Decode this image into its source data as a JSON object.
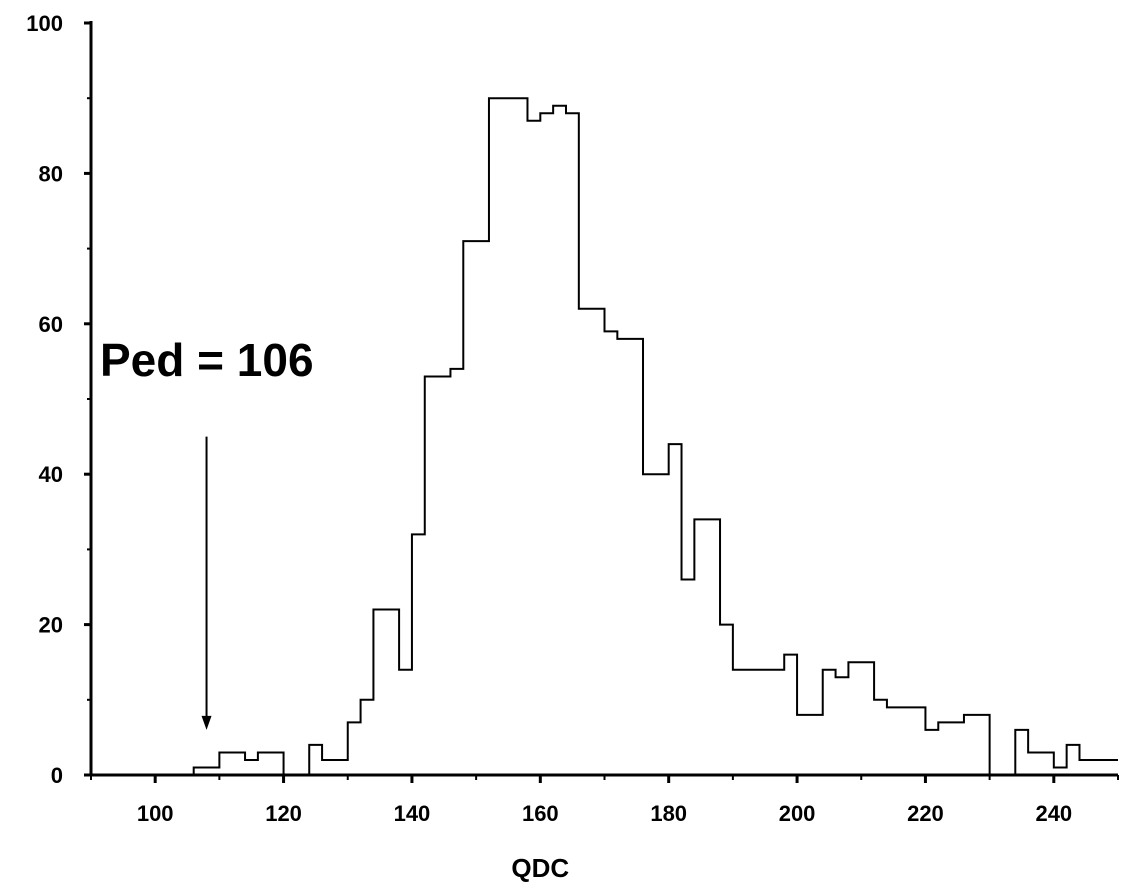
{
  "chart_data": {
    "type": "histogram",
    "title": "",
    "xlabel": "QDC",
    "ylabel": "",
    "xlim": [
      90,
      250
    ],
    "ylim": [
      0,
      100
    ],
    "x_ticks": [
      100,
      120,
      140,
      160,
      180,
      200,
      220,
      240
    ],
    "y_ticks": [
      0,
      20,
      40,
      60,
      80,
      100
    ],
    "bin_width": 2,
    "bin_starts": [
      90,
      92,
      94,
      96,
      98,
      100,
      102,
      104,
      106,
      108,
      110,
      112,
      114,
      116,
      118,
      120,
      122,
      124,
      126,
      128,
      130,
      132,
      134,
      136,
      138,
      140,
      142,
      144,
      146,
      148,
      150,
      152,
      154,
      156,
      158,
      160,
      162,
      164,
      166,
      168,
      170,
      172,
      174,
      176,
      178,
      180,
      182,
      184,
      186,
      188,
      190,
      192,
      194,
      196,
      198,
      200,
      202,
      204,
      206,
      208,
      210,
      212,
      214,
      216,
      218,
      220,
      222,
      224,
      226,
      228,
      230,
      232,
      234,
      236,
      238,
      240,
      242,
      244,
      246,
      248
    ],
    "counts": [
      0,
      0,
      0,
      0,
      0,
      0,
      0,
      0,
      1,
      1,
      3,
      3,
      2,
      3,
      3,
      0,
      0,
      4,
      2,
      2,
      7,
      10,
      22,
      22,
      14,
      32,
      53,
      53,
      54,
      71,
      71,
      90,
      90,
      90,
      87,
      88,
      89,
      88,
      62,
      62,
      59,
      58,
      58,
      40,
      40,
      44,
      26,
      34,
      34,
      20,
      14,
      14,
      14,
      14,
      16,
      8,
      8,
      14,
      13,
      15,
      15,
      10,
      9,
      9,
      9,
      6,
      7,
      7,
      8,
      8,
      0,
      0,
      6,
      3,
      3,
      1,
      4,
      2,
      2,
      2
    ],
    "grid": false,
    "legend": "none",
    "annotations": [
      {
        "text": "Ped = 106",
        "x": 108,
        "arrow_from_y": 45,
        "arrow_to_y": 6
      }
    ],
    "colors": {
      "line": "#000000",
      "background": "#ffffff"
    }
  }
}
